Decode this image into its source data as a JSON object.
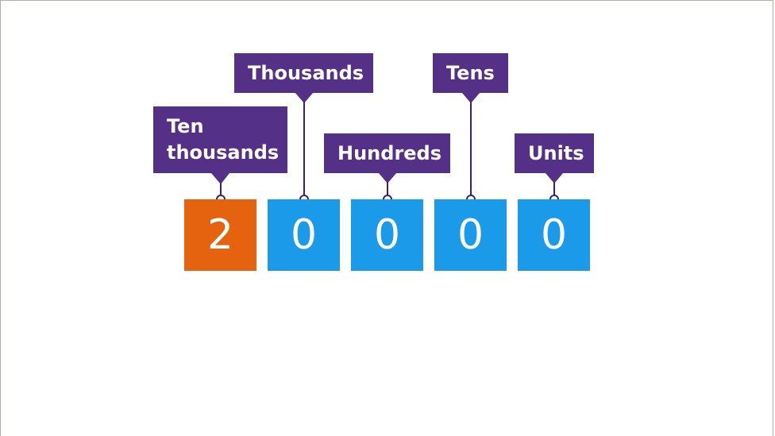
{
  "colors": {
    "label": "#553087",
    "highlight": "#e5620f",
    "digit": "#1b9aea"
  },
  "places": [
    {
      "label": "Ten thousands",
      "digit": "2",
      "highlighted": true
    },
    {
      "label": "Thousands",
      "digit": "0",
      "highlighted": false
    },
    {
      "label": "Hundreds",
      "digit": "0",
      "highlighted": false
    },
    {
      "label": "Tens",
      "digit": "0",
      "highlighted": false
    },
    {
      "label": "Units",
      "digit": "0",
      "highlighted": false
    }
  ]
}
